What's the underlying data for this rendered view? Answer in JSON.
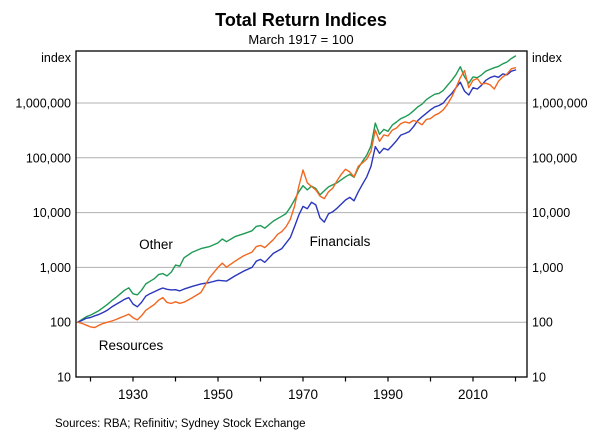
{
  "title": "Total Return Indices",
  "subtitle": "March 1917 = 100",
  "left_unit": "index",
  "right_unit": "index",
  "source_note": "Sources: RBA; Refinitiv; Sydney Stock Exchange",
  "colors": {
    "other": "#1f9a54",
    "financials": "#2a36bd",
    "resources": "#f2671f",
    "grid": "#b0b0b0",
    "axis": "#000000"
  },
  "chart_data": {
    "type": "line",
    "title": "Total Return Indices",
    "subtitle": "March 1917 = 100",
    "y_scale": "log",
    "ylim": [
      10,
      8900000
    ],
    "xlim": [
      1916.6,
      2022.3
    ],
    "grid": "horizontal-only",
    "y_ticks": [
      10,
      100,
      1000,
      10000,
      100000,
      1000000
    ],
    "y_tick_labels": [
      "10",
      "100",
      "1,000",
      "10,000",
      "100,000",
      "1,000,000"
    ],
    "x_minor_ticks": [
      1920,
      1930,
      1940,
      1950,
      1960,
      1970,
      1980,
      1990,
      2000,
      2010,
      2020
    ],
    "x_major_ticks": [
      1930,
      1950,
      1970,
      1990,
      2010
    ],
    "x_major_tick_labels": [
      "1930",
      "1950",
      "1970",
      "1990",
      "2010"
    ],
    "legend_position": "inline-labels",
    "series": [
      {
        "name": "Other",
        "color_key": "other",
        "points": [
          [
            1917,
            100
          ],
          [
            1918,
            112
          ],
          [
            1919,
            126
          ],
          [
            1920,
            135
          ],
          [
            1921,
            148
          ],
          [
            1922,
            163
          ],
          [
            1923,
            186
          ],
          [
            1924,
            212
          ],
          [
            1925,
            248
          ],
          [
            1926,
            282
          ],
          [
            1927,
            330
          ],
          [
            1928,
            382
          ],
          [
            1929,
            425
          ],
          [
            1930,
            330
          ],
          [
            1931,
            316
          ],
          [
            1932,
            382
          ],
          [
            1933,
            500
          ],
          [
            1934,
            558
          ],
          [
            1935,
            622
          ],
          [
            1936,
            740
          ],
          [
            1937,
            770
          ],
          [
            1938,
            700
          ],
          [
            1939,
            820
          ],
          [
            1940,
            1100
          ],
          [
            1941,
            1050
          ],
          [
            1942,
            1500
          ],
          [
            1944,
            1900
          ],
          [
            1946,
            2200
          ],
          [
            1948,
            2400
          ],
          [
            1950,
            2800
          ],
          [
            1951,
            3300
          ],
          [
            1952,
            2950
          ],
          [
            1954,
            3650
          ],
          [
            1956,
            4100
          ],
          [
            1958,
            4650
          ],
          [
            1959,
            5600
          ],
          [
            1960,
            5800
          ],
          [
            1961,
            5200
          ],
          [
            1963,
            7000
          ],
          [
            1965,
            8600
          ],
          [
            1966,
            9600
          ],
          [
            1967,
            12500
          ],
          [
            1968,
            17000
          ],
          [
            1969,
            24000
          ],
          [
            1970,
            31000
          ],
          [
            1971,
            26000
          ],
          [
            1972,
            30500
          ],
          [
            1973,
            27500
          ],
          [
            1974,
            21000
          ],
          [
            1975,
            25000
          ],
          [
            1976,
            29500
          ],
          [
            1978,
            35000
          ],
          [
            1980,
            45000
          ],
          [
            1981,
            50000
          ],
          [
            1982,
            44000
          ],
          [
            1983,
            65000
          ],
          [
            1984,
            86000
          ],
          [
            1985,
            112000
          ],
          [
            1986,
            165000
          ],
          [
            1987,
            430000
          ],
          [
            1988,
            268000
          ],
          [
            1989,
            330000
          ],
          [
            1990,
            305000
          ],
          [
            1991,
            395000
          ],
          [
            1992,
            450000
          ],
          [
            1993,
            520000
          ],
          [
            1994,
            560000
          ],
          [
            1995,
            620000
          ],
          [
            1996,
            720000
          ],
          [
            1997,
            850000
          ],
          [
            1998,
            950000
          ],
          [
            1999,
            1150000
          ],
          [
            2000,
            1300000
          ],
          [
            2001,
            1450000
          ],
          [
            2002,
            1500000
          ],
          [
            2003,
            1700000
          ],
          [
            2004,
            2100000
          ],
          [
            2005,
            2600000
          ],
          [
            2006,
            3300000
          ],
          [
            2007,
            4600000
          ],
          [
            2008,
            3000000
          ],
          [
            2009,
            2300000
          ],
          [
            2010,
            3000000
          ],
          [
            2011,
            2900000
          ],
          [
            2012,
            3250000
          ],
          [
            2013,
            3800000
          ],
          [
            2014,
            4100000
          ],
          [
            2015,
            4400000
          ],
          [
            2016,
            4650000
          ],
          [
            2017,
            5200000
          ],
          [
            2018,
            5600000
          ],
          [
            2019,
            6500000
          ],
          [
            2020,
            7200000
          ]
        ]
      },
      {
        "name": "Financials",
        "color_key": "financials",
        "points": [
          [
            1917,
            100
          ],
          [
            1918,
            108
          ],
          [
            1919,
            118
          ],
          [
            1920,
            122
          ],
          [
            1921,
            131
          ],
          [
            1922,
            139
          ],
          [
            1923,
            151
          ],
          [
            1924,
            166
          ],
          [
            1925,
            190
          ],
          [
            1926,
            211
          ],
          [
            1927,
            235
          ],
          [
            1928,
            262
          ],
          [
            1929,
            281
          ],
          [
            1930,
            215
          ],
          [
            1931,
            191
          ],
          [
            1932,
            230
          ],
          [
            1933,
            300
          ],
          [
            1934,
            331
          ],
          [
            1935,
            360
          ],
          [
            1936,
            391
          ],
          [
            1937,
            420
          ],
          [
            1938,
            399
          ],
          [
            1939,
            388
          ],
          [
            1940,
            392
          ],
          [
            1941,
            372
          ],
          [
            1942,
            401
          ],
          [
            1944,
            452
          ],
          [
            1946,
            500
          ],
          [
            1948,
            531
          ],
          [
            1950,
            581
          ],
          [
            1952,
            562
          ],
          [
            1954,
            700
          ],
          [
            1956,
            851
          ],
          [
            1958,
            1000
          ],
          [
            1959,
            1300
          ],
          [
            1960,
            1400
          ],
          [
            1961,
            1240
          ],
          [
            1963,
            1800
          ],
          [
            1965,
            2200
          ],
          [
            1967,
            3500
          ],
          [
            1968,
            5500
          ],
          [
            1969,
            9000
          ],
          [
            1970,
            13000
          ],
          [
            1971,
            11800
          ],
          [
            1972,
            15500
          ],
          [
            1973,
            13800
          ],
          [
            1974,
            8000
          ],
          [
            1975,
            6700
          ],
          [
            1976,
            9500
          ],
          [
            1977,
            10400
          ],
          [
            1978,
            12000
          ],
          [
            1980,
            17000
          ],
          [
            1981,
            19000
          ],
          [
            1982,
            16400
          ],
          [
            1983,
            24000
          ],
          [
            1984,
            33000
          ],
          [
            1985,
            45000
          ],
          [
            1986,
            70000
          ],
          [
            1987,
            160000
          ],
          [
            1988,
            121000
          ],
          [
            1989,
            149000
          ],
          [
            1990,
            139000
          ],
          [
            1991,
            168000
          ],
          [
            1992,
            205000
          ],
          [
            1993,
            260000
          ],
          [
            1994,
            278000
          ],
          [
            1995,
            301000
          ],
          [
            1996,
            370000
          ],
          [
            1997,
            480000
          ],
          [
            1998,
            560000
          ],
          [
            1999,
            650000
          ],
          [
            2000,
            750000
          ],
          [
            2001,
            850000
          ],
          [
            2002,
            900000
          ],
          [
            2003,
            1000000
          ],
          [
            2004,
            1250000
          ],
          [
            2005,
            1500000
          ],
          [
            2006,
            1900000
          ],
          [
            2007,
            2400000
          ],
          [
            2008,
            1650000
          ],
          [
            2009,
            1400000
          ],
          [
            2010,
            1900000
          ],
          [
            2011,
            1800000
          ],
          [
            2012,
            2100000
          ],
          [
            2013,
            2600000
          ],
          [
            2014,
            2900000
          ],
          [
            2015,
            3100000
          ],
          [
            2016,
            2950000
          ],
          [
            2017,
            3400000
          ],
          [
            2018,
            3250000
          ],
          [
            2019,
            3800000
          ],
          [
            2020,
            4000000
          ]
        ]
      },
      {
        "name": "Resources",
        "color_key": "resources",
        "points": [
          [
            1917,
            100
          ],
          [
            1918,
            95
          ],
          [
            1919,
            88
          ],
          [
            1920,
            82
          ],
          [
            1921,
            80
          ],
          [
            1922,
            88
          ],
          [
            1923,
            95
          ],
          [
            1924,
            100
          ],
          [
            1925,
            105
          ],
          [
            1926,
            112
          ],
          [
            1927,
            121
          ],
          [
            1928,
            130
          ],
          [
            1929,
            140
          ],
          [
            1930,
            121
          ],
          [
            1931,
            110
          ],
          [
            1932,
            131
          ],
          [
            1933,
            165
          ],
          [
            1934,
            186
          ],
          [
            1935,
            210
          ],
          [
            1936,
            252
          ],
          [
            1937,
            281
          ],
          [
            1938,
            229
          ],
          [
            1939,
            220
          ],
          [
            1940,
            236
          ],
          [
            1941,
            221
          ],
          [
            1942,
            232
          ],
          [
            1944,
            281
          ],
          [
            1946,
            350
          ],
          [
            1948,
            650
          ],
          [
            1950,
            1000
          ],
          [
            1951,
            1200
          ],
          [
            1952,
            1010
          ],
          [
            1954,
            1300
          ],
          [
            1956,
            1620
          ],
          [
            1958,
            1900
          ],
          [
            1959,
            2400
          ],
          [
            1960,
            2520
          ],
          [
            1961,
            2300
          ],
          [
            1963,
            3200
          ],
          [
            1964,
            4000
          ],
          [
            1965,
            4500
          ],
          [
            1966,
            5500
          ],
          [
            1967,
            7500
          ],
          [
            1968,
            13000
          ],
          [
            1969,
            30000
          ],
          [
            1970,
            60000
          ],
          [
            1971,
            35000
          ],
          [
            1972,
            30000
          ],
          [
            1973,
            26000
          ],
          [
            1974,
            20000
          ],
          [
            1975,
            18000
          ],
          [
            1976,
            24000
          ],
          [
            1977,
            28000
          ],
          [
            1978,
            38000
          ],
          [
            1979,
            50000
          ],
          [
            1980,
            62000
          ],
          [
            1981,
            55000
          ],
          [
            1982,
            45000
          ],
          [
            1983,
            70000
          ],
          [
            1984,
            81000
          ],
          [
            1985,
            95000
          ],
          [
            1986,
            132000
          ],
          [
            1987,
            320000
          ],
          [
            1988,
            200000
          ],
          [
            1989,
            262000
          ],
          [
            1990,
            250000
          ],
          [
            1991,
            320000
          ],
          [
            1992,
            350000
          ],
          [
            1993,
            420000
          ],
          [
            1994,
            452000
          ],
          [
            1995,
            430000
          ],
          [
            1996,
            482000
          ],
          [
            1997,
            450000
          ],
          [
            1998,
            400000
          ],
          [
            1999,
            500000
          ],
          [
            2000,
            520000
          ],
          [
            2001,
            600000
          ],
          [
            2002,
            650000
          ],
          [
            2003,
            750000
          ],
          [
            2004,
            950000
          ],
          [
            2005,
            1300000
          ],
          [
            2006,
            1900000
          ],
          [
            2007,
            2900000
          ],
          [
            2008,
            3900000
          ],
          [
            2009,
            1900000
          ],
          [
            2010,
            2600000
          ],
          [
            2011,
            2800000
          ],
          [
            2012,
            2200000
          ],
          [
            2013,
            2300000
          ],
          [
            2014,
            2150000
          ],
          [
            2015,
            1800000
          ],
          [
            2016,
            2500000
          ],
          [
            2017,
            3000000
          ],
          [
            2018,
            3400000
          ],
          [
            2019,
            4200000
          ],
          [
            2020,
            4400000
          ]
        ]
      }
    ]
  }
}
